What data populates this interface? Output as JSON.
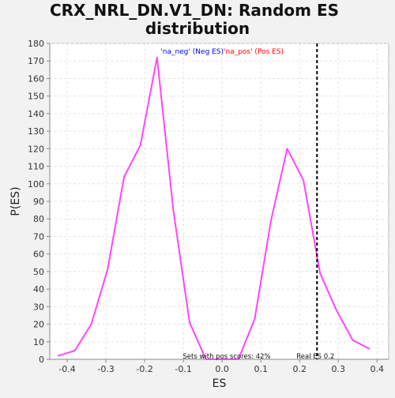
{
  "chart_data": {
    "type": "line",
    "title": "CRX_NRL_DN.V1_DN: Random ES distribution",
    "xlabel": "ES",
    "ylabel": "P(ES)",
    "xlim": [
      -0.445,
      0.43
    ],
    "ylim": [
      0,
      180
    ],
    "x_ticks": [
      "-0.4",
      "-0.3",
      "-0.2",
      "-0.1",
      "0.0",
      "0.1",
      "0.2",
      "0.3",
      "0.4"
    ],
    "x_tick_values": [
      -0.4,
      -0.3,
      -0.2,
      -0.1,
      0.0,
      0.1,
      0.2,
      0.3,
      0.4
    ],
    "y_ticks": [
      "0",
      "10",
      "20",
      "30",
      "40",
      "50",
      "60",
      "70",
      "80",
      "90",
      "100",
      "110",
      "120",
      "130",
      "140",
      "150",
      "160",
      "170",
      "180"
    ],
    "y_tick_values": [
      0,
      10,
      20,
      30,
      40,
      50,
      60,
      70,
      80,
      90,
      100,
      110,
      120,
      130,
      140,
      150,
      160,
      170,
      180
    ],
    "grid": true,
    "series": [
      {
        "color": "#ff44ff",
        "x": [
          -0.423,
          -0.38,
          -0.338,
          -0.296,
          -0.253,
          -0.211,
          -0.168,
          -0.126,
          -0.084,
          -0.042,
          0.0,
          0.042,
          0.084,
          0.126,
          0.168,
          0.21,
          0.253,
          0.295,
          0.337,
          0.38
        ],
        "y": [
          2,
          5,
          20,
          51,
          104,
          122,
          172,
          85,
          21,
          0,
          0,
          0,
          23,
          79,
          120,
          102,
          49,
          28,
          11,
          6
        ]
      }
    ],
    "real_es_line": {
      "x": 0.245,
      "color": "#000000"
    },
    "legend": {
      "placement": "top-center",
      "neg_label": "'na_neg' (Neg ES)",
      "neg_color": "#0000ff",
      "pos_label": "'na_pos' (Pos ES)",
      "pos_color": "#ff0000"
    },
    "annotations": {
      "pos_scores": "Sets with pos scores: 42%",
      "real_es": "Real ES 0.2"
    }
  }
}
